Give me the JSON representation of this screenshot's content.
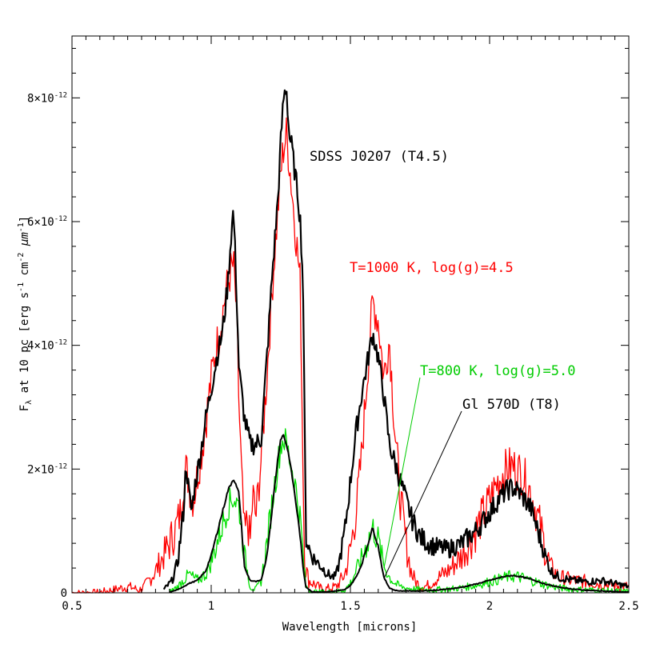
{
  "chart_data": {
    "type": "line",
    "title": "",
    "xlabel": "Wavelength  [microns]",
    "ylabel_parts": {
      "f": "F",
      "lambda_sub": "λ",
      "mid": " at 10 pc [erg s",
      "s_exp": "-1",
      "cm": " cm",
      "cm_exp": "-2",
      "space": " ",
      "mu": "μ",
      "m": "m",
      "m_exp": "-1",
      "close": "]"
    },
    "xlim": [
      0.5,
      2.5
    ],
    "ylim": [
      0,
      9e-12
    ],
    "x_ticks": [
      {
        "value": 0.5,
        "label": "0.5"
      },
      {
        "value": 1.0,
        "label": "1"
      },
      {
        "value": 1.5,
        "label": "1.5"
      },
      {
        "value": 2.0,
        "label": "2"
      },
      {
        "value": 2.5,
        "label": "2.5"
      }
    ],
    "y_ticks": [
      {
        "value": 0,
        "mant": "0",
        "exp": ""
      },
      {
        "value": 2e-12,
        "mant": "2×10",
        "exp": "-12"
      },
      {
        "value": 4e-12,
        "mant": "4×10",
        "exp": "-12"
      },
      {
        "value": 6e-12,
        "mant": "6×10",
        "exp": "-12"
      },
      {
        "value": 8e-12,
        "mant": "8×10",
        "exp": "-12"
      }
    ],
    "series": [
      {
        "name": "T=1000 K, log(g)=4.5",
        "color": "#ff0000",
        "width": 1.3,
        "noise": 0.7,
        "x": [
          0.5,
          0.55,
          0.6,
          0.65,
          0.68,
          0.7,
          0.72,
          0.74,
          0.76,
          0.8,
          0.84,
          0.87,
          0.89,
          0.9,
          0.91,
          0.92,
          0.93,
          0.94,
          0.95,
          0.97,
          0.99,
          1.01,
          1.03,
          1.05,
          1.07,
          1.08,
          1.09,
          1.1,
          1.11,
          1.12,
          1.13,
          1.14,
          1.15,
          1.16,
          1.18,
          1.2,
          1.22,
          1.24,
          1.25,
          1.26,
          1.27,
          1.28,
          1.29,
          1.3,
          1.31,
          1.32,
          1.33,
          1.335,
          1.35,
          1.4,
          1.45,
          1.48,
          1.5,
          1.52,
          1.54,
          1.56,
          1.58,
          1.6,
          1.62,
          1.64,
          1.66,
          1.68,
          1.7,
          1.72,
          1.74,
          1.76,
          1.78,
          1.8,
          1.85,
          1.9,
          1.95,
          2.0,
          2.03,
          2.06,
          2.08,
          2.1,
          2.12,
          2.15,
          2.18,
          2.2,
          2.22,
          2.25,
          2.3,
          2.35,
          2.4,
          2.45,
          2.5
        ],
        "y": [
          0,
          0,
          1e-14,
          5e-14,
          8e-14,
          1e-13,
          8e-14,
          4e-14,
          1e-13,
          3.5e-13,
          7e-13,
          1e-12,
          1.3e-12,
          1.8e-12,
          2e-12,
          1.8e-12,
          1.5e-12,
          1.6e-12,
          1.9e-12,
          2.4e-12,
          3.1e-12,
          3.8e-12,
          4.2e-12,
          4.8e-12,
          5.2e-12,
          5.3e-12,
          4.6e-12,
          3e-12,
          1.8e-12,
          9e-13,
          1.2e-12,
          8e-13,
          1.6e-12,
          1.2e-12,
          2.2e-12,
          3.5e-12,
          5e-12,
          6.2e-12,
          6.8e-12,
          7.2e-12,
          7.4e-12,
          7e-12,
          6.5e-12,
          6e-12,
          5.5e-12,
          5e-12,
          2e-12,
          5e-13,
          2e-13,
          5e-14,
          1e-13,
          3e-13,
          7e-13,
          1.3e-12,
          2.2e-12,
          3.5e-12,
          4.7e-12,
          4.4e-12,
          3.5e-12,
          4.1e-12,
          2.6e-12,
          1.5e-12,
          8e-13,
          3e-13,
          1.5e-13,
          1e-13,
          1.2e-13,
          2e-13,
          3.5e-13,
          6e-13,
          1e-12,
          1.5e-12,
          1.8e-12,
          2e-12,
          2.05e-12,
          2e-12,
          1.9e-12,
          1.6e-12,
          1.1e-12,
          7e-13,
          4e-13,
          2.5e-13,
          2e-13,
          1.8e-13,
          1.5e-13,
          1.2e-13,
          1e-13
        ]
      },
      {
        "name": "SDSS J0207 (T4.5)",
        "color": "#000000",
        "width": 2.2,
        "noise": 0.35,
        "x": [
          0.83,
          0.86,
          0.88,
          0.9,
          0.91,
          0.92,
          0.93,
          0.94,
          0.96,
          0.98,
          1.0,
          1.02,
          1.04,
          1.06,
          1.07,
          1.08,
          1.09,
          1.1,
          1.12,
          1.14,
          1.16,
          1.18,
          1.2,
          1.22,
          1.24,
          1.25,
          1.26,
          1.27,
          1.28,
          1.29,
          1.3,
          1.31,
          1.32,
          1.33,
          1.34,
          1.36,
          1.38,
          1.4,
          1.42,
          1.44,
          1.45,
          1.46,
          1.48,
          1.5,
          1.52,
          1.54,
          1.56,
          1.58,
          1.6,
          1.62,
          1.64,
          1.66,
          1.68,
          1.7,
          1.72,
          1.75,
          1.78,
          1.8,
          1.85,
          1.9,
          1.95,
          2.0,
          2.03,
          2.06,
          2.08,
          2.1,
          2.12,
          2.15,
          2.18,
          2.2,
          2.22,
          2.25,
          2.3,
          2.35,
          2.4,
          2.45,
          2.5
        ],
        "y": [
          5e-14,
          2e-13,
          5e-13,
          1.3e-12,
          2.1e-12,
          1.6e-12,
          1.3e-12,
          1.7e-12,
          2.2e-12,
          2.8e-12,
          3.3e-12,
          3.8e-12,
          4.2e-12,
          5e-12,
          5.7e-12,
          6.2e-12,
          5e-12,
          3.6e-12,
          2.8e-12,
          2.4e-12,
          2.4e-12,
          2.5e-12,
          3.8e-12,
          5.2e-12,
          6.4e-12,
          7.3e-12,
          8e-12,
          8.2e-12,
          7.4e-12,
          7.2e-12,
          6.8e-12,
          6.5e-12,
          6e-12,
          5e-12,
          9e-13,
          6e-13,
          5e-13,
          4e-13,
          3e-13,
          2.5e-13,
          3e-13,
          5e-13,
          1e-12,
          1.8e-12,
          2.6e-12,
          3.2e-12,
          3.7e-12,
          4.2e-12,
          3.8e-12,
          3.2e-12,
          2.4e-12,
          2.1e-12,
          1.8e-12,
          1.5e-12,
          1.2e-12,
          9e-13,
          8e-13,
          7.5e-13,
          7e-13,
          8e-13,
          1e-12,
          1.3e-12,
          1.5e-12,
          1.65e-12,
          1.7e-12,
          1.65e-12,
          1.55e-12,
          1.35e-12,
          9e-13,
          6e-13,
          3.5e-13,
          2.5e-13,
          2e-13,
          1.8e-13,
          2e-13,
          1.5e-13,
          1e-13
        ]
      },
      {
        "name": "T=800 K, log(g)=5.0",
        "color": "#00e000",
        "width": 1.3,
        "noise": 0.5,
        "x": [
          0.85,
          0.88,
          0.9,
          0.92,
          0.95,
          0.98,
          1.0,
          1.02,
          1.04,
          1.06,
          1.08,
          1.1,
          1.12,
          1.14,
          1.16,
          1.18,
          1.2,
          1.22,
          1.24,
          1.25,
          1.26,
          1.27,
          1.28,
          1.3,
          1.32,
          1.33,
          1.34,
          1.36,
          1.4,
          1.45,
          1.48,
          1.5,
          1.52,
          1.54,
          1.56,
          1.58,
          1.6,
          1.62,
          1.64,
          1.66,
          1.68,
          1.7,
          1.75,
          1.8,
          1.85,
          1.9,
          1.95,
          2.0,
          2.05,
          2.08,
          2.1,
          2.15,
          2.2,
          2.25,
          2.3,
          2.35,
          2.4,
          2.45,
          2.5
        ],
        "y": [
          1e-14,
          1e-13,
          2e-13,
          3e-13,
          2e-13,
          3e-13,
          5e-13,
          8e-13,
          1.1e-12,
          1.4e-12,
          1.55e-12,
          1.4e-12,
          6e-13,
          1e-13,
          5e-14,
          2e-13,
          8e-13,
          1.5e-12,
          2.1e-12,
          2.4e-12,
          2.5e-12,
          2.4e-12,
          2.2e-12,
          1.8e-12,
          1.2e-12,
          6e-13,
          1e-13,
          2e-14,
          1e-14,
          2e-14,
          5e-14,
          1.5e-13,
          3.5e-13,
          5.5e-13,
          8e-13,
          1.05e-12,
          8.5e-13,
          4.5e-13,
          2.5e-13,
          1.5e-13,
          1e-13,
          8e-14,
          5e-14,
          5e-14,
          6e-14,
          8e-14,
          1.2e-13,
          1.8e-13,
          2.4e-13,
          2.7e-13,
          2.6e-13,
          2e-13,
          1.3e-13,
          8e-14,
          6e-14,
          5e-14,
          4e-14,
          3e-14,
          2e-14
        ]
      },
      {
        "name": "Gl 570D (T8)",
        "color": "#000000",
        "width": 2.0,
        "noise": 0.05,
        "x": [
          0.85,
          0.88,
          0.9,
          0.92,
          0.95,
          0.98,
          1.0,
          1.02,
          1.04,
          1.06,
          1.08,
          1.1,
          1.12,
          1.14,
          1.16,
          1.18,
          1.2,
          1.22,
          1.24,
          1.25,
          1.26,
          1.27,
          1.28,
          1.3,
          1.32,
          1.33,
          1.34,
          1.36,
          1.4,
          1.45,
          1.48,
          1.5,
          1.52,
          1.54,
          1.56,
          1.58,
          1.6,
          1.62,
          1.64,
          1.66,
          1.68,
          1.7,
          1.75,
          1.8,
          1.85,
          1.9,
          1.95,
          2.0,
          2.05,
          2.08,
          2.1,
          2.15,
          2.2,
          2.25,
          2.3,
          2.35,
          2.4,
          2.45,
          2.5
        ],
        "y": [
          1e-14,
          5e-14,
          1e-13,
          1.5e-13,
          2e-13,
          3.5e-13,
          6e-13,
          9.5e-13,
          1.3e-12,
          1.65e-12,
          1.85e-12,
          1.6e-12,
          4e-13,
          2e-13,
          1.8e-13,
          2e-13,
          6e-13,
          1.4e-12,
          2.2e-12,
          2.5e-12,
          2.55e-12,
          2.4e-12,
          2.2e-12,
          1.6e-12,
          9e-13,
          4e-13,
          1e-13,
          2e-14,
          1e-14,
          3e-14,
          5e-14,
          1.2e-13,
          2.5e-13,
          4.5e-13,
          7.5e-13,
          1.05e-12,
          7.5e-13,
          2.5e-13,
          8e-14,
          4e-14,
          3e-14,
          3e-14,
          3e-14,
          4e-14,
          6e-14,
          9e-14,
          1.4e-13,
          2e-13,
          2.6e-13,
          2.8e-13,
          2.7e-13,
          2.2e-13,
          1.4e-13,
          9e-14,
          6e-14,
          4e-14,
          3e-14,
          2e-14,
          1e-14
        ]
      }
    ],
    "annotations": [
      {
        "text": "SDSS J0207 (T4.5)",
        "color": "#000000"
      },
      {
        "text": "T=1000 K, log(g)=4.5",
        "color": "#ff0000"
      },
      {
        "text": "T=800 K, log(g)=5.0",
        "color": "#00cc00"
      },
      {
        "text": "Gl 570D (T8)",
        "color": "#000000"
      }
    ],
    "grid": false,
    "legend": "none"
  }
}
